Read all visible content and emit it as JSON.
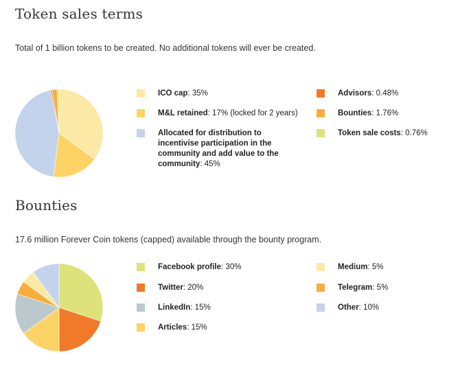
{
  "chart_data": [
    {
      "type": "pie",
      "title": "Token sales terms",
      "description": "Total of 1 billion tokens to be created. No additional tokens will ever be created.",
      "slices": [
        {
          "label": "ICO cap",
          "value": 35,
          "value_text": "35%",
          "color": "#FDE9A6"
        },
        {
          "label": "M&L retained",
          "value": 17,
          "value_text": "17% (locked for 2 years)",
          "color": "#FDD366"
        },
        {
          "label": "Allocated for distribution to incentivise participation in the community and add value to the community",
          "value": 45,
          "value_text": "45%",
          "color": "#C4D3EC"
        },
        {
          "label": "Advisors",
          "value": 0.48,
          "value_text": "0.48%",
          "color": "#F07A29"
        },
        {
          "label": "Bounties",
          "value": 1.76,
          "value_text": "1.76%",
          "color": "#F8AE3C"
        },
        {
          "label": "Token sale costs",
          "value": 0.76,
          "value_text": "0.76%",
          "color": "#DDE27A"
        }
      ]
    },
    {
      "type": "pie",
      "title": "Bounties",
      "description": "17.6 million Forever Coin tokens (capped) available through the bounty program.",
      "slices": [
        {
          "label": "Facebook profile",
          "value": 30,
          "value_text": "30%",
          "color": "#DDE27A"
        },
        {
          "label": "Twitter",
          "value": 20,
          "value_text": "20%",
          "color": "#F07A29"
        },
        {
          "label": "Articles",
          "value": 15,
          "value_text": "15%",
          "color": "#FDD366"
        },
        {
          "label": "LinkedIn",
          "value": 15,
          "value_text": "15%",
          "color": "#B9C9CD"
        },
        {
          "label": "Telegram",
          "value": 5,
          "value_text": "5%",
          "color": "#F8AE3C"
        },
        {
          "label": "Medium",
          "value": 5,
          "value_text": "5%",
          "color": "#FDE9A6"
        },
        {
          "label": "Other",
          "value": 10,
          "value_text": "10%",
          "color": "#C4D3EC"
        }
      ]
    }
  ]
}
